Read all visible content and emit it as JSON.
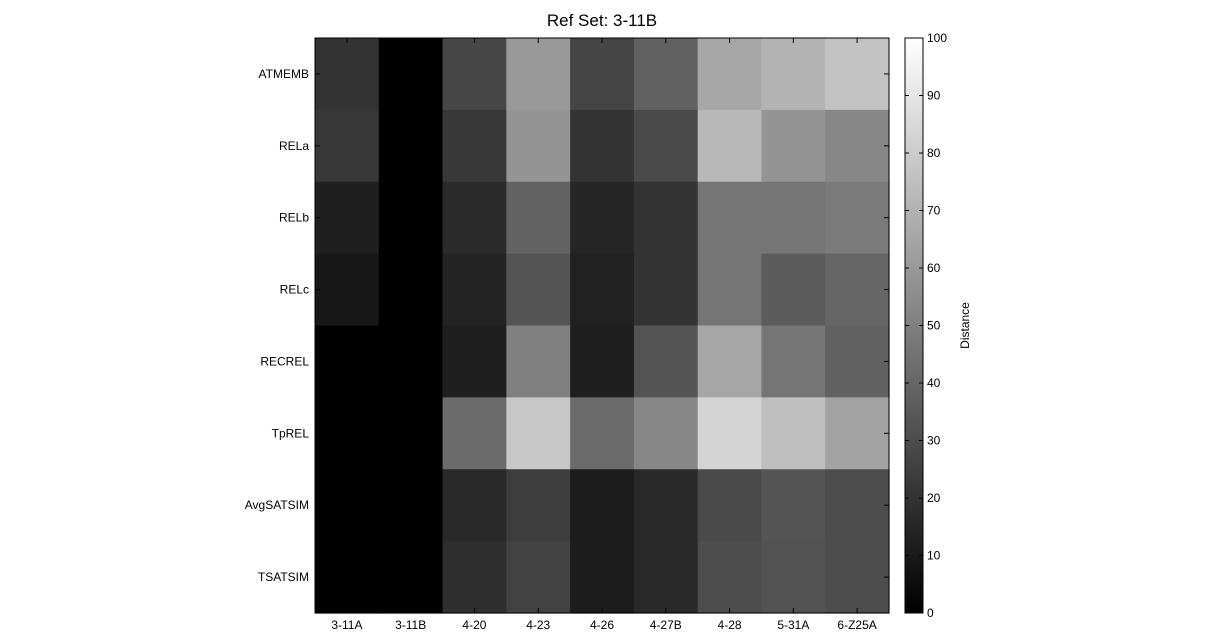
{
  "chart_data": {
    "type": "heatmap",
    "title": "Ref Set: 3-11B",
    "x_categories": [
      "3-11A",
      "3-11B",
      "4-20",
      "4-23",
      "4-26",
      "4-27B",
      "4-28",
      "5-31A",
      "6-Z25A"
    ],
    "y_categories": [
      "ATMEMB",
      "RELa",
      "RELb",
      "RELc",
      "RECREL",
      "TpREL",
      "AvgSATSIM",
      "TSATSIM"
    ],
    "values": [
      [
        20,
        0,
        28,
        60,
        27,
        38,
        65,
        70,
        76
      ],
      [
        22,
        0,
        22,
        58,
        20,
        29,
        72,
        58,
        53
      ],
      [
        12,
        0,
        17,
        39,
        15,
        20,
        46,
        46,
        48
      ],
      [
        9,
        0,
        14,
        33,
        13,
        20,
        46,
        36,
        40
      ],
      [
        0,
        0,
        12,
        50,
        12,
        33,
        65,
        46,
        38
      ],
      [
        0,
        0,
        42,
        78,
        42,
        53,
        83,
        75,
        64
      ],
      [
        0,
        0,
        16,
        24,
        11,
        16,
        29,
        33,
        30
      ],
      [
        0,
        0,
        18,
        26,
        11,
        16,
        30,
        32,
        30
      ]
    ],
    "colormap": "gray",
    "colorbar": {
      "label": "Distance",
      "range": [
        0,
        100
      ],
      "ticks": [
        0,
        10,
        20,
        30,
        40,
        50,
        60,
        70,
        80,
        90,
        100
      ]
    },
    "grid": false
  }
}
